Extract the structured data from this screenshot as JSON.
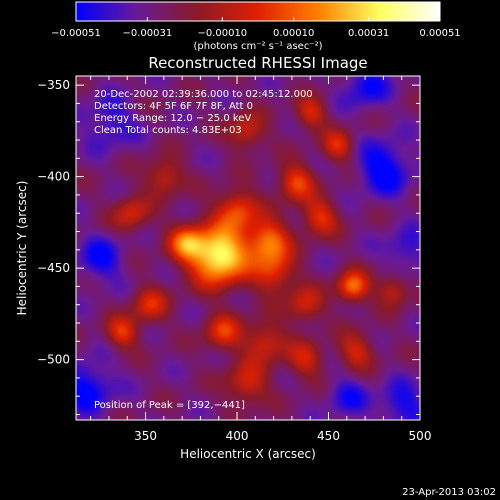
{
  "chart_data": {
    "type": "heatmap",
    "title": "Reconstructed RHESSI Image",
    "xlabel": "Heliocentric X (arcsec)",
    "ylabel": "Heliocentric Y (arcsec)",
    "xlim": [
      312,
      500
    ],
    "ylim": [
      -533,
      -345
    ],
    "x_ticks": [
      350,
      400,
      450,
      500
    ],
    "y_ticks": [
      -350,
      -400,
      -450,
      -500
    ],
    "x_tick_labels": [
      "350",
      "400",
      "450",
      "500"
    ],
    "y_tick_labels": [
      "−350",
      "−400",
      "−450",
      "−500"
    ],
    "colorbar": {
      "min": -0.00051,
      "max": 0.00051,
      "tick_values": [
        -0.00051,
        -0.00031,
        -0.0001,
        0.0001,
        0.00031,
        0.00051
      ],
      "tick_labels": [
        "−0.00051",
        "−0.00031",
        "−0.00010",
        "0.00010",
        "0.00031",
        "0.00051"
      ],
      "unit_label": "(photons cm⁻² s⁻¹ asec⁻²)",
      "colors": [
        "#0000ff",
        "#6a1a98",
        "#8a1a28",
        "#e02000",
        "#ff8000",
        "#ffff60",
        "#ffffff"
      ]
    },
    "annotations": {
      "time": "20-Dec-2002 02:39:36.000 to 02:45:12.000",
      "detectors": "Detectors: 4F 5F 6F 7F 8F, Att 0",
      "energy": "Energy Range: 12.0 − 25.0 keV",
      "clean": "Clean    Total counts: 4.83E+03",
      "peak": "Position of Peak = [392,−441]"
    },
    "peak": {
      "x": 392,
      "y": -441
    },
    "sources": [
      {
        "x": 390,
        "y": -443,
        "amp": 1.0,
        "sigma": 11
      },
      {
        "x": 372,
        "y": -436,
        "amp": 0.55,
        "sigma": 7
      },
      {
        "x": 400,
        "y": -418,
        "amp": 0.5,
        "sigma": 8
      },
      {
        "x": 417,
        "y": -435,
        "amp": 0.62,
        "sigma": 8
      },
      {
        "x": 432,
        "y": -403,
        "amp": 0.5,
        "sigma": 7
      },
      {
        "x": 445,
        "y": -422,
        "amp": 0.45,
        "sigma": 7
      },
      {
        "x": 420,
        "y": -452,
        "amp": 0.45,
        "sigma": 8
      },
      {
        "x": 463,
        "y": -460,
        "amp": 0.62,
        "sigma": 6
      },
      {
        "x": 437,
        "y": -470,
        "amp": 0.38,
        "sigma": 7
      },
      {
        "x": 415,
        "y": -490,
        "amp": 0.4,
        "sigma": 8
      },
      {
        "x": 437,
        "y": -500,
        "amp": 0.36,
        "sigma": 7
      },
      {
        "x": 392,
        "y": -485,
        "amp": 0.45,
        "sigma": 7
      },
      {
        "x": 405,
        "y": -513,
        "amp": 0.4,
        "sigma": 8
      },
      {
        "x": 352,
        "y": -470,
        "amp": 0.4,
        "sigma": 7
      },
      {
        "x": 337,
        "y": -485,
        "amp": 0.45,
        "sigma": 6
      },
      {
        "x": 342,
        "y": -420,
        "amp": 0.38,
        "sigma": 7
      },
      {
        "x": 360,
        "y": -400,
        "amp": 0.38,
        "sigma": 7
      },
      {
        "x": 405,
        "y": -375,
        "amp": 0.38,
        "sigma": 7
      },
      {
        "x": 440,
        "y": -365,
        "amp": 0.4,
        "sigma": 6
      },
      {
        "x": 455,
        "y": -383,
        "amp": 0.42,
        "sigma": 6
      },
      {
        "x": 485,
        "y": -462,
        "amp": 0.36,
        "sigma": 6
      },
      {
        "x": 465,
        "y": -495,
        "amp": 0.38,
        "sigma": 7
      },
      {
        "x": 480,
        "y": -395,
        "amp": -0.4,
        "sigma": 10
      },
      {
        "x": 470,
        "y": -350,
        "amp": -0.3,
        "sigma": 9
      },
      {
        "x": 330,
        "y": -370,
        "amp": -0.25,
        "sigma": 10
      },
      {
        "x": 325,
        "y": -445,
        "amp": -0.3,
        "sigma": 9
      },
      {
        "x": 318,
        "y": -515,
        "amp": -0.35,
        "sigma": 10
      },
      {
        "x": 490,
        "y": -525,
        "amp": -0.3,
        "sigma": 9
      },
      {
        "x": 460,
        "y": -520,
        "amp": -0.25,
        "sigma": 8
      },
      {
        "x": 492,
        "y": -440,
        "amp": -0.25,
        "sigma": 8
      }
    ]
  },
  "footer": {
    "timestamp": "23-Apr-2013 03:02"
  }
}
